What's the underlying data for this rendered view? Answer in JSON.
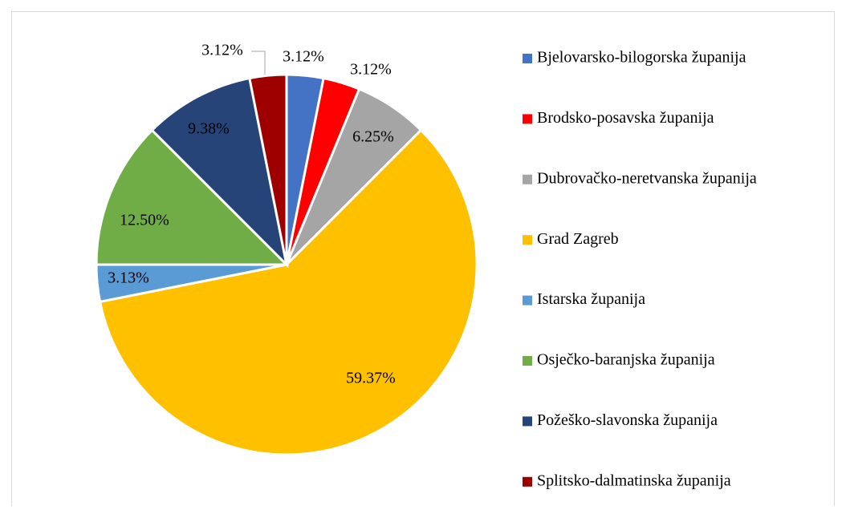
{
  "chart_data": {
    "type": "pie",
    "categories": [
      "Bjelovarsko-bilogorska županija",
      "Brodsko-posavska županija",
      "Dubrovačko-neretvanska županija",
      "Grad Zagreb",
      "Istarska županija",
      "Osječko-baranjska županija",
      "Požeško-slavonska županija",
      "Splitsko-dalmatinska županija"
    ],
    "values": [
      3.12,
      3.12,
      6.25,
      59.37,
      3.13,
      12.5,
      9.38,
      3.12
    ],
    "value_labels": [
      "3.12%",
      "3.12%",
      "6.25%",
      "59.37%",
      "3.13%",
      "12.50%",
      "9.38%",
      "3.12%"
    ],
    "colors": [
      "#4472c4",
      "#ff0000",
      "#a5a5a5",
      "#ffc000",
      "#5b9bd5",
      "#70ad47",
      "#264478",
      "#9e0000"
    ],
    "legend": "right"
  }
}
